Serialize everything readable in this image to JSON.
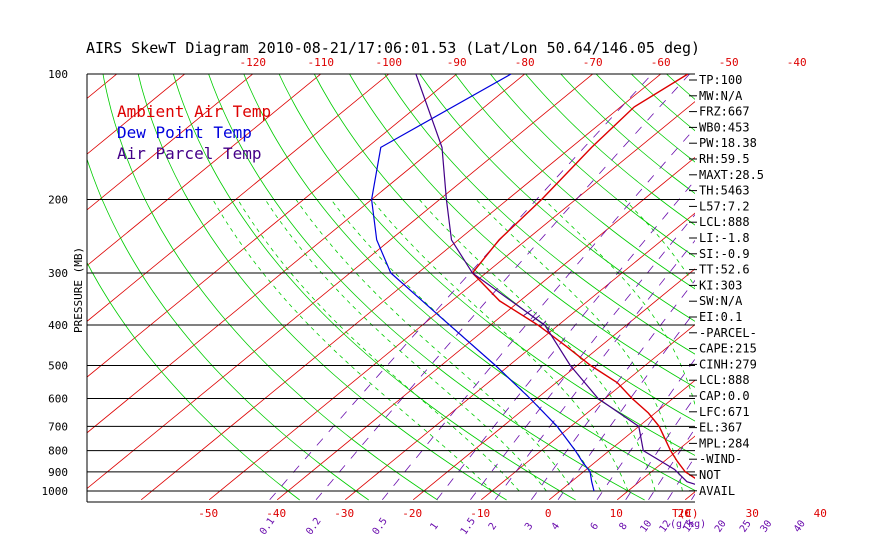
{
  "title": "AIRS SkewT Diagram 2010-08-21/17:06:01.53 (Lat/Lon 50.64/146.05 deg)",
  "colors": {
    "ambient": "#dd0000",
    "dewpoint": "#0000dd",
    "parcel": "#440088",
    "isotherm": "#dd0000",
    "dry_adiabat": "#00cc00",
    "moist_adiabat": "#00cc00",
    "mixing_ratio": "#6a0dad",
    "isobar": "#000000",
    "text": "#000000"
  },
  "legend": [
    {
      "label": "Ambient Air Temp",
      "color": "#dd0000"
    },
    {
      "label": "Dew Point Temp",
      "color": "#0000dd"
    },
    {
      "label": "Air Parcel Temp",
      "color": "#440088"
    }
  ],
  "chart_data": {
    "type": "line",
    "title": "AIRS SkewT Diagram 2010-08-21/17:06:01.53 (Lat/Lon 50.64/146.05 deg)",
    "ylabel": "PRESSURE (MB)",
    "xlabel": "T(C)",
    "mixing_ratio_label": "g/kg",
    "pressure_ticks": [
      100,
      200,
      300,
      400,
      500,
      600,
      700,
      800,
      900,
      1000
    ],
    "top_temp_ticks": [
      -120,
      -110,
      -100,
      -90,
      -80,
      -70,
      -60,
      -50,
      -40
    ],
    "bottom_temp_ticks": [
      -50,
      -40,
      -30,
      -20,
      -10,
      0,
      10,
      20,
      30,
      40
    ],
    "mixing_ratio_ticks": [
      "0.1",
      "0.2",
      "0.5",
      "1",
      "1.5",
      "2",
      "3",
      "4",
      "6",
      "8",
      "10",
      "12",
      "15",
      "20",
      "25",
      "30",
      "40"
    ],
    "ylim": [
      100,
      1000
    ],
    "series": [
      {
        "name": "Ambient Air Temp",
        "points": [
          [
            100,
            -56
          ],
          [
            120,
            -58
          ],
          [
            150,
            -57
          ],
          [
            200,
            -55
          ],
          [
            250,
            -54
          ],
          [
            300,
            -52
          ],
          [
            350,
            -43
          ],
          [
            400,
            -33
          ],
          [
            450,
            -25
          ],
          [
            500,
            -18
          ],
          [
            550,
            -11
          ],
          [
            600,
            -6
          ],
          [
            650,
            -1
          ],
          [
            700,
            3
          ],
          [
            800,
            9
          ],
          [
            850,
            12
          ],
          [
            900,
            15
          ],
          [
            950,
            19
          ],
          [
            1000,
            23
          ]
        ]
      },
      {
        "name": "Dew Point Temp",
        "points": [
          [
            100,
            -82
          ],
          [
            150,
            -88
          ],
          [
            200,
            -80
          ],
          [
            250,
            -72
          ],
          [
            300,
            -64
          ],
          [
            400,
            -46
          ],
          [
            500,
            -32
          ],
          [
            600,
            -21
          ],
          [
            700,
            -12
          ],
          [
            800,
            -5
          ],
          [
            850,
            -2
          ],
          [
            900,
            1
          ],
          [
            950,
            3
          ],
          [
            1000,
            5
          ]
        ]
      },
      {
        "name": "Air Parcel Temp",
        "points": [
          [
            100,
            -96
          ],
          [
            150,
            -79
          ],
          [
            200,
            -69
          ],
          [
            250,
            -61
          ],
          [
            300,
            -52
          ],
          [
            400,
            -32
          ],
          [
            500,
            -21
          ],
          [
            600,
            -11
          ],
          [
            700,
            0
          ],
          [
            800,
            5
          ],
          [
            888,
            13
          ],
          [
            950,
            17
          ],
          [
            1000,
            23
          ]
        ]
      }
    ]
  },
  "indices": [
    "TP:100",
    "MW:N/A",
    "FRZ:667",
    "WB0:453",
    "PW:18.38",
    "RH:59.5",
    "MAXT:28.5",
    "TH:5463",
    "L57:7.2",
    "LCL:888",
    "LI:-1.8",
    "SI:-0.9",
    "TT:52.6",
    "KI:303",
    "SW:N/A",
    "EI:0.1",
    "-PARCEL-",
    "CAPE:215",
    "CINH:279",
    "LCL:888",
    "CAP:0.0",
    "LFC:671",
    "EL:367",
    "MPL:284",
    "-WIND-",
    "NOT",
    "AVAIL"
  ]
}
